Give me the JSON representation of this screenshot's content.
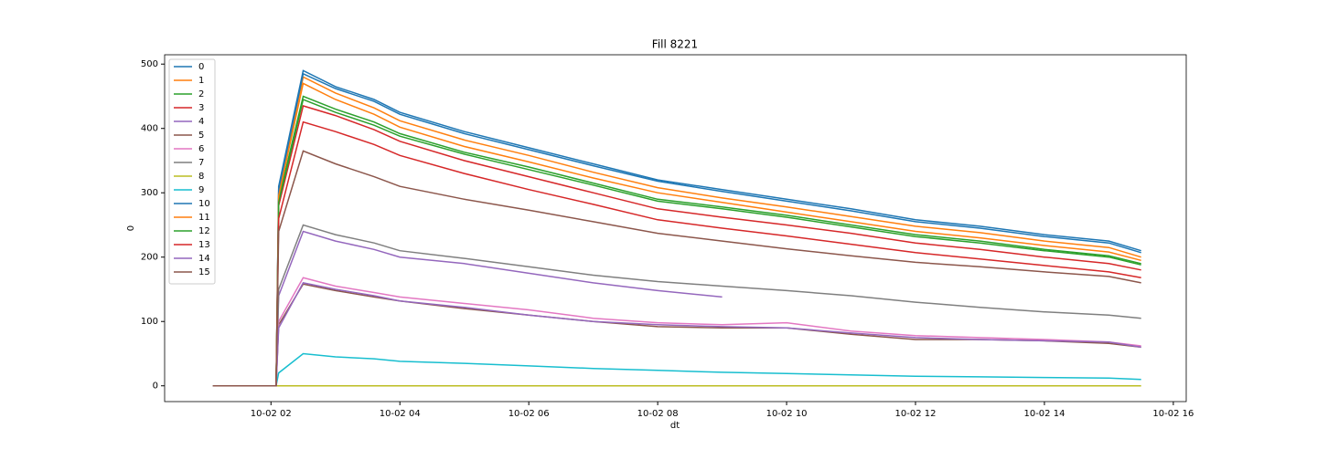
{
  "chart_data": {
    "type": "line",
    "title": "Fill 8221",
    "x_label": "dt",
    "y_label": "0",
    "x": [
      1.1,
      2.08,
      2.12,
      2.5,
      3,
      3.6,
      4,
      5,
      6,
      7,
      8,
      9,
      10,
      11,
      12,
      13,
      14,
      15,
      15.5
    ],
    "xlim": [
      0.35,
      16.2
    ],
    "xticks": [
      {
        "value": 2,
        "label": "10-02 02"
      },
      {
        "value": 4,
        "label": "10-02 04"
      },
      {
        "value": 6,
        "label": "10-02 06"
      },
      {
        "value": 8,
        "label": "10-02 08"
      },
      {
        "value": 10,
        "label": "10-02 10"
      },
      {
        "value": 12,
        "label": "10-02 12"
      },
      {
        "value": 14,
        "label": "10-02 14"
      },
      {
        "value": 16,
        "label": "10-02 16"
      }
    ],
    "ylim": [
      -24.5,
      514.5
    ],
    "yticks": [
      0,
      100,
      200,
      300,
      400,
      500
    ],
    "grid": false,
    "legend": "upper left",
    "series": [
      {
        "name": "0",
        "color": "#1f77b4",
        "values": [
          0,
          0,
          310,
          490,
          465,
          445,
          425,
          395,
          370,
          345,
          320,
          305,
          290,
          275,
          258,
          248,
          235,
          225,
          210
        ]
      },
      {
        "name": "1",
        "color": "#ff7f0e",
        "values": [
          0,
          0,
          300,
          480,
          455,
          432,
          412,
          382,
          358,
          332,
          308,
          292,
          278,
          263,
          248,
          238,
          225,
          215,
          200
        ]
      },
      {
        "name": "2",
        "color": "#2ca02c",
        "values": [
          0,
          0,
          290,
          450,
          430,
          410,
          392,
          363,
          340,
          315,
          290,
          278,
          265,
          250,
          235,
          225,
          212,
          202,
          190
        ]
      },
      {
        "name": "3",
        "color": "#d62728",
        "values": [
          0,
          0,
          280,
          435,
          420,
          398,
          380,
          350,
          325,
          300,
          275,
          262,
          250,
          237,
          222,
          212,
          200,
          190,
          180
        ]
      },
      {
        "name": "4",
        "color": "#9467bd",
        "values": [
          0,
          0,
          140,
          240,
          225,
          212,
          200,
          190,
          175,
          160,
          148,
          138,
          null,
          null,
          null,
          null,
          null,
          null,
          null
        ]
      },
      {
        "name": "5",
        "color": "#8c564b",
        "values": [
          0,
          0,
          95,
          158,
          148,
          138,
          132,
          120,
          110,
          100,
          92,
          90,
          90,
          80,
          72,
          72,
          70,
          66,
          60
        ]
      },
      {
        "name": "6",
        "color": "#e377c2",
        "values": [
          0,
          0,
          100,
          168,
          155,
          145,
          138,
          128,
          118,
          105,
          98,
          95,
          98,
          85,
          78,
          75,
          72,
          68,
          62
        ]
      },
      {
        "name": "7",
        "color": "#7f7f7f",
        "values": [
          0,
          0,
          150,
          250,
          235,
          222,
          210,
          198,
          185,
          172,
          162,
          155,
          148,
          140,
          130,
          122,
          115,
          110,
          105
        ]
      },
      {
        "name": "8",
        "color": "#bcbd22",
        "values": [
          0,
          0,
          0,
          0,
          0,
          0,
          0,
          0,
          0,
          0,
          0,
          0,
          0,
          0,
          0,
          0,
          0,
          0,
          0
        ]
      },
      {
        "name": "9",
        "color": "#17becf",
        "values": [
          0,
          0,
          20,
          50,
          45,
          42,
          38,
          35,
          31,
          27,
          24,
          21,
          19,
          17,
          15,
          14,
          13,
          12,
          10
        ]
      },
      {
        "name": "10",
        "color": "#1f77b4",
        "values": [
          0,
          0,
          305,
          485,
          462,
          442,
          422,
          392,
          367,
          342,
          318,
          302,
          287,
          272,
          255,
          245,
          232,
          222,
          207
        ]
      },
      {
        "name": "11",
        "color": "#ff7f0e",
        "values": [
          0,
          0,
          295,
          470,
          445,
          422,
          402,
          372,
          348,
          323,
          300,
          285,
          270,
          255,
          240,
          230,
          218,
          208,
          195
        ]
      },
      {
        "name": "12",
        "color": "#2ca02c",
        "values": [
          0,
          0,
          285,
          445,
          425,
          405,
          388,
          360,
          336,
          312,
          287,
          275,
          262,
          247,
          232,
          222,
          210,
          200,
          188
        ]
      },
      {
        "name": "13",
        "color": "#d62728",
        "values": [
          0,
          0,
          260,
          410,
          395,
          375,
          358,
          330,
          305,
          282,
          258,
          245,
          233,
          220,
          207,
          197,
          187,
          177,
          168
        ]
      },
      {
        "name": "14",
        "color": "#9467bd",
        "values": [
          0,
          0,
          90,
          160,
          150,
          140,
          132,
          122,
          110,
          100,
          95,
          92,
          90,
          82,
          75,
          72,
          70,
          68,
          60
        ]
      },
      {
        "name": "15",
        "color": "#8c564b",
        "values": [
          0,
          0,
          240,
          365,
          345,
          325,
          310,
          290,
          273,
          255,
          237,
          225,
          213,
          202,
          192,
          185,
          177,
          170,
          160
        ]
      }
    ]
  }
}
